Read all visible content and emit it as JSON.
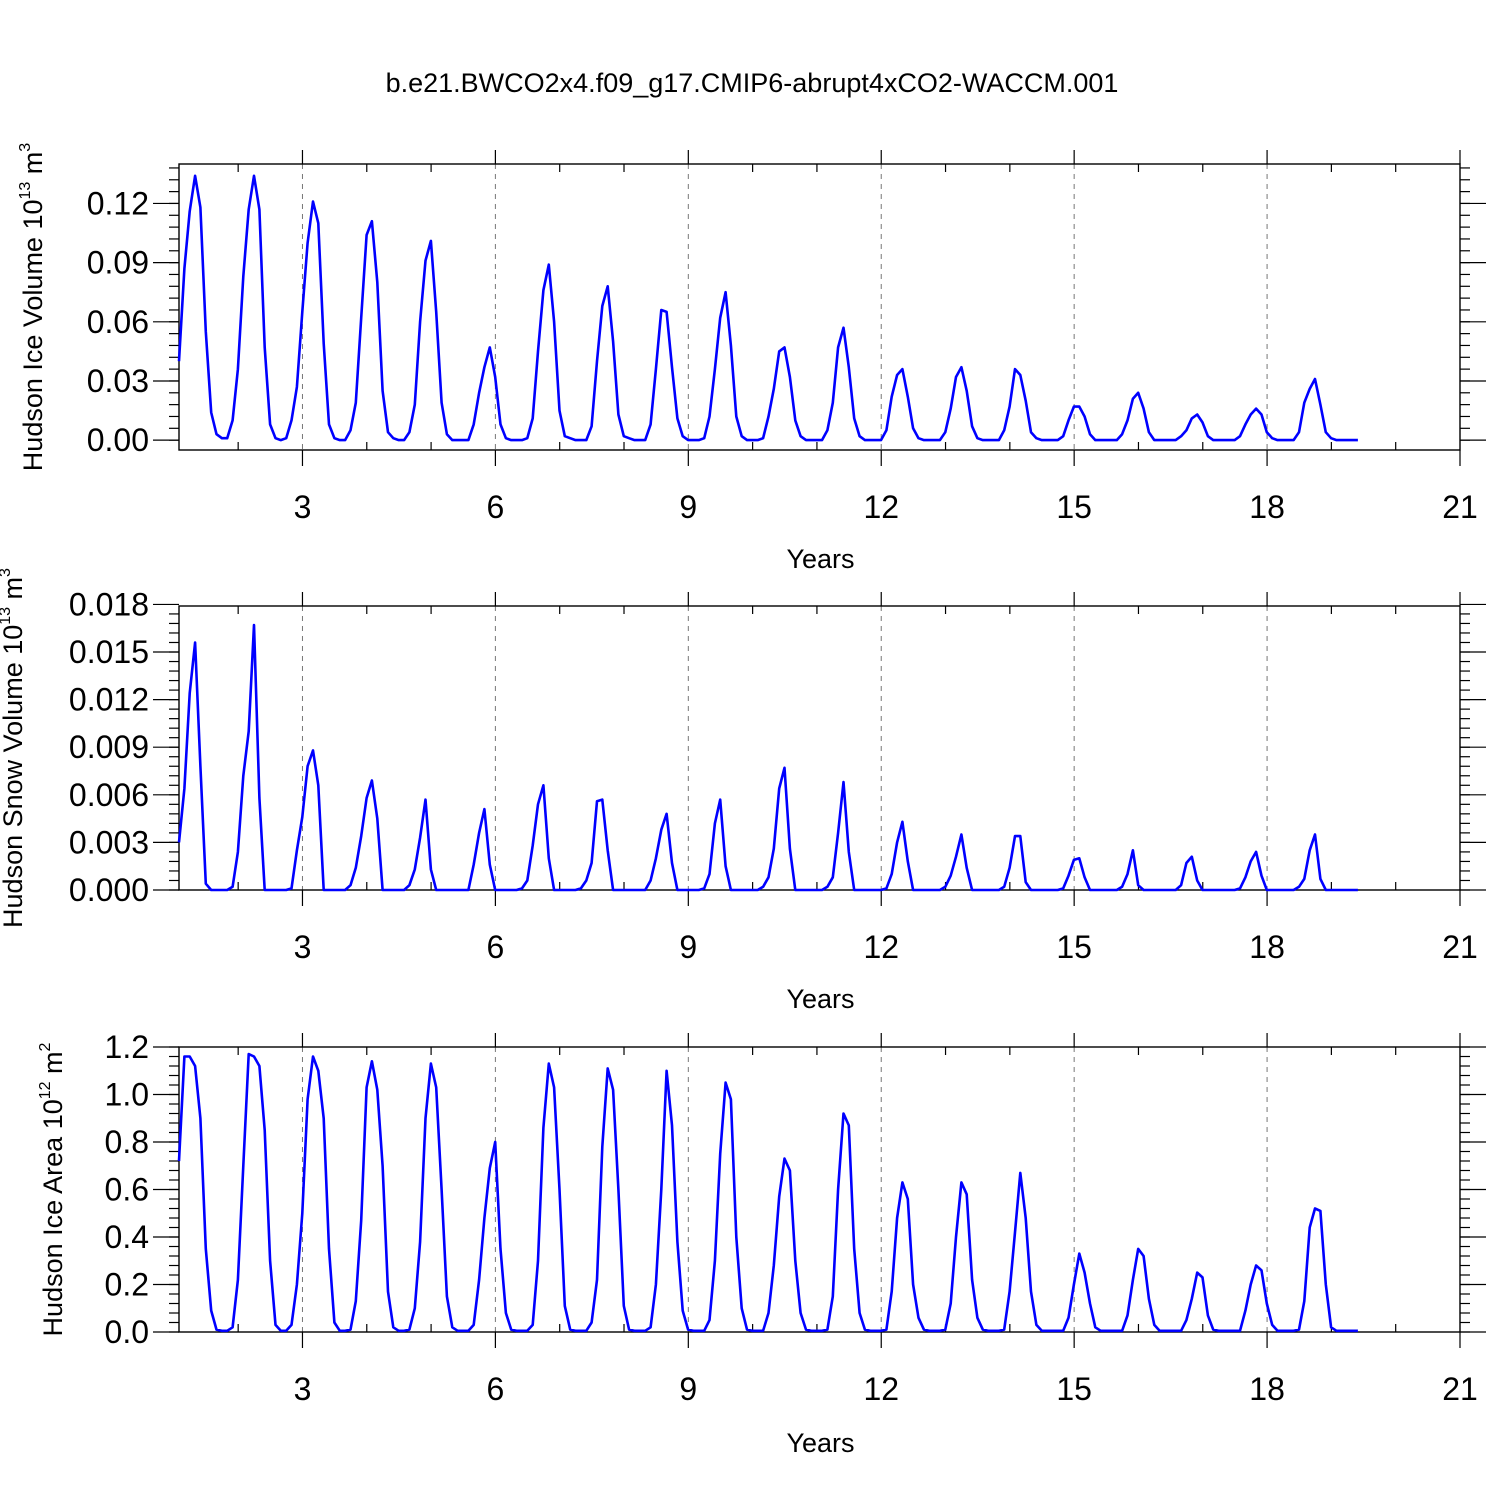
{
  "figure": {
    "title": "b.e21.BWCO2x4.f09_g17.CMIP6-abrupt4xCO2-WACCM.001",
    "series_color": "#0000ff"
  },
  "chart_data": [
    {
      "type": "line",
      "title": "b.e21.BWCO2x4.f09_g17.CMIP6-abrupt4xCO2-WACCM.001",
      "xlabel": "Years",
      "ylabel_main": "Hudson Ice Volume 10",
      "ylabel_exp": "13",
      "ylabel_unit": " m",
      "ylabel_unit_exp": "3",
      "xlim": [
        1.08,
        21.0
      ],
      "ylim": [
        -0.005,
        0.14
      ],
      "xticks": [
        3,
        6,
        9,
        12,
        15,
        18,
        21
      ],
      "xtick_labels": [
        "3",
        "6",
        "9",
        "12",
        "15",
        "18",
        "21"
      ],
      "yticks": [
        0.0,
        0.03,
        0.06,
        0.09,
        0.12
      ],
      "ytick_labels": [
        "0.00",
        "0.03",
        "0.06",
        "0.09",
        "0.12"
      ],
      "y_minor_step": 0.006,
      "x0": 1.08,
      "dx": 0.08333,
      "values": [
        0.04,
        0.087,
        0.116,
        0.134,
        0.118,
        0.055,
        0.014,
        0.003,
        0.001,
        0.001,
        0.01,
        0.036,
        0.083,
        0.117,
        0.134,
        0.117,
        0.047,
        0.008,
        0.001,
        0.0,
        0.001,
        0.01,
        0.027,
        0.065,
        0.1,
        0.121,
        0.11,
        0.049,
        0.008,
        0.001,
        0.0,
        0.0,
        0.005,
        0.019,
        0.062,
        0.104,
        0.111,
        0.08,
        0.025,
        0.004,
        0.001,
        0.0,
        0.0,
        0.004,
        0.018,
        0.06,
        0.091,
        0.101,
        0.065,
        0.019,
        0.003,
        0.0,
        0.0,
        0.0,
        0.0,
        0.008,
        0.024,
        0.037,
        0.047,
        0.032,
        0.008,
        0.001,
        0.0,
        0.0,
        0.0,
        0.001,
        0.011,
        0.045,
        0.076,
        0.089,
        0.06,
        0.015,
        0.002,
        0.001,
        0.0,
        0.0,
        0.0,
        0.007,
        0.04,
        0.068,
        0.078,
        0.05,
        0.013,
        0.002,
        0.001,
        0.0,
        0.0,
        0.0,
        0.008,
        0.036,
        0.066,
        0.065,
        0.037,
        0.011,
        0.002,
        0.0,
        0.0,
        0.0,
        0.001,
        0.012,
        0.036,
        0.062,
        0.075,
        0.048,
        0.012,
        0.002,
        0.0,
        0.0,
        0.0,
        0.001,
        0.012,
        0.026,
        0.045,
        0.047,
        0.032,
        0.01,
        0.002,
        0.0,
        0.0,
        0.0,
        0.0,
        0.005,
        0.019,
        0.047,
        0.057,
        0.037,
        0.011,
        0.002,
        0.0,
        0.0,
        0.0,
        0.0,
        0.005,
        0.022,
        0.033,
        0.036,
        0.022,
        0.006,
        0.001,
        0.0,
        0.0,
        0.0,
        0.0,
        0.004,
        0.016,
        0.032,
        0.037,
        0.025,
        0.007,
        0.001,
        0.0,
        0.0,
        0.0,
        0.0,
        0.005,
        0.017,
        0.036,
        0.033,
        0.02,
        0.004,
        0.001,
        0.0,
        0.0,
        0.0,
        0.0,
        0.002,
        0.01,
        0.017,
        0.017,
        0.012,
        0.003,
        0.0,
        0.0,
        0.0,
        0.0,
        0.0,
        0.003,
        0.01,
        0.021,
        0.024,
        0.016,
        0.004,
        0.0,
        0.0,
        0.0,
        0.0,
        0.0,
        0.002,
        0.005,
        0.011,
        0.013,
        0.009,
        0.002,
        0.0,
        0.0,
        0.0,
        0.0,
        0.0,
        0.002,
        0.008,
        0.013,
        0.016,
        0.013,
        0.004,
        0.001,
        0.0,
        0.0,
        0.0,
        0.0,
        0.004,
        0.019,
        0.026,
        0.031,
        0.018,
        0.004,
        0.001,
        0.0,
        0.0,
        0.0,
        0.0,
        0.0
      ]
    },
    {
      "type": "line",
      "xlabel": "Years",
      "ylabel_main": "Hudson Snow Volume 10",
      "ylabel_exp": "13",
      "ylabel_unit": " m",
      "ylabel_unit_exp": "3",
      "xlim": [
        1.08,
        21.0
      ],
      "ylim": [
        0.0,
        0.0179
      ],
      "xticks": [
        3,
        6,
        9,
        12,
        15,
        18,
        21
      ],
      "xtick_labels": [
        "3",
        "6",
        "9",
        "12",
        "15",
        "18",
        "21"
      ],
      "yticks": [
        0.0,
        0.003,
        0.006,
        0.009,
        0.012,
        0.015,
        0.018
      ],
      "ytick_labels": [
        "0.000",
        "0.003",
        "0.006",
        "0.009",
        "0.012",
        "0.015",
        "0.018"
      ],
      "y_minor_step": 0.0006,
      "x0": 1.08,
      "dx": 0.08333,
      "values": [
        0.003,
        0.0064,
        0.0124,
        0.0156,
        0.0078,
        0.0004,
        0.0,
        0.0,
        0.0,
        0.0,
        0.0002,
        0.0024,
        0.0072,
        0.01,
        0.0167,
        0.0058,
        0.0,
        0.0,
        0.0,
        0.0,
        0.0,
        0.0001,
        0.0025,
        0.0046,
        0.0078,
        0.0088,
        0.0066,
        0.0,
        0.0,
        0.0,
        0.0,
        0.0,
        0.0003,
        0.0014,
        0.0034,
        0.0058,
        0.0069,
        0.0045,
        0.0,
        0.0,
        0.0,
        0.0,
        0.0,
        0.0003,
        0.0013,
        0.0033,
        0.0057,
        0.0013,
        0.0,
        0.0,
        0.0,
        0.0,
        0.0,
        0.0,
        0.0,
        0.0016,
        0.0036,
        0.0051,
        0.0016,
        0.0,
        0.0,
        0.0,
        0.0,
        0.0,
        0.0001,
        0.0006,
        0.0028,
        0.0054,
        0.0066,
        0.002,
        0.0,
        0.0,
        0.0,
        0.0,
        0.0,
        0.0001,
        0.0006,
        0.0017,
        0.0056,
        0.0057,
        0.0025,
        0.0,
        0.0,
        0.0,
        0.0,
        0.0,
        0.0,
        0.0,
        0.0006,
        0.002,
        0.0038,
        0.0048,
        0.0017,
        0.0,
        0.0,
        0.0,
        0.0,
        0.0,
        0.0001,
        0.001,
        0.0042,
        0.0057,
        0.0015,
        0.0,
        0.0,
        0.0,
        0.0,
        0.0,
        0.0,
        0.0002,
        0.0008,
        0.0026,
        0.0064,
        0.0077,
        0.0026,
        0.0,
        0.0,
        0.0,
        0.0,
        0.0,
        0.0,
        0.0002,
        0.0008,
        0.0036,
        0.0068,
        0.0024,
        0.0,
        0.0,
        0.0,
        0.0,
        0.0,
        0.0,
        0.0001,
        0.001,
        0.003,
        0.0043,
        0.0018,
        0.0,
        0.0,
        0.0,
        0.0,
        0.0,
        0.0,
        0.0002,
        0.0009,
        0.0021,
        0.0035,
        0.0014,
        0.0,
        0.0,
        0.0,
        0.0,
        0.0,
        0.0,
        0.0002,
        0.0014,
        0.0034,
        0.0034,
        0.0005,
        0.0,
        0.0,
        0.0,
        0.0,
        0.0,
        0.0,
        0.0001,
        0.0009,
        0.0019,
        0.002,
        0.0008,
        0.0,
        0.0,
        0.0,
        0.0,
        0.0,
        0.0,
        0.0002,
        0.001,
        0.0025,
        0.0003,
        0.0,
        0.0,
        0.0,
        0.0,
        0.0,
        0.0,
        0.0,
        0.0003,
        0.0017,
        0.0021,
        0.0006,
        0.0,
        0.0,
        0.0,
        0.0,
        0.0,
        0.0,
        0.0,
        0.0001,
        0.0008,
        0.0018,
        0.0024,
        0.0009,
        0.0,
        0.0,
        0.0,
        0.0,
        0.0,
        0.0,
        0.0002,
        0.0007,
        0.0025,
        0.0035,
        0.0007,
        0.0,
        0.0,
        0.0,
        0.0,
        0.0,
        0.0,
        0.0
      ]
    },
    {
      "type": "line",
      "xlabel": "Years",
      "ylabel_main": "Hudson Ice Area 10",
      "ylabel_exp": "12",
      "ylabel_unit": " m",
      "ylabel_unit_exp": "2",
      "xlim": [
        1.08,
        21.0
      ],
      "ylim": [
        0.0,
        1.2
      ],
      "xticks": [
        3,
        6,
        9,
        12,
        15,
        18,
        21
      ],
      "xtick_labels": [
        "3",
        "6",
        "9",
        "12",
        "15",
        "18",
        "21"
      ],
      "yticks": [
        0.0,
        0.2,
        0.4,
        0.6,
        0.8,
        1.0,
        1.2
      ],
      "ytick_labels": [
        "0.0",
        "0.2",
        "0.4",
        "0.6",
        "0.8",
        "1.0",
        "1.2"
      ],
      "y_minor_step": 0.04,
      "x0": 1.08,
      "dx": 0.08333,
      "values": [
        0.72,
        1.16,
        1.16,
        1.12,
        0.9,
        0.35,
        0.09,
        0.01,
        0.005,
        0.005,
        0.02,
        0.22,
        0.7,
        1.17,
        1.16,
        1.12,
        0.85,
        0.3,
        0.03,
        0.005,
        0.005,
        0.03,
        0.2,
        0.5,
        0.98,
        1.16,
        1.1,
        0.9,
        0.35,
        0.04,
        0.005,
        0.005,
        0.01,
        0.13,
        0.47,
        1.03,
        1.14,
        1.02,
        0.7,
        0.17,
        0.02,
        0.005,
        0.005,
        0.01,
        0.1,
        0.38,
        0.9,
        1.13,
        1.03,
        0.6,
        0.15,
        0.02,
        0.005,
        0.005,
        0.005,
        0.03,
        0.22,
        0.48,
        0.69,
        0.8,
        0.35,
        0.08,
        0.01,
        0.005,
        0.005,
        0.005,
        0.03,
        0.3,
        0.86,
        1.13,
        1.03,
        0.6,
        0.11,
        0.01,
        0.005,
        0.005,
        0.005,
        0.04,
        0.22,
        0.78,
        1.11,
        1.02,
        0.6,
        0.11,
        0.01,
        0.005,
        0.005,
        0.005,
        0.02,
        0.2,
        0.6,
        1.1,
        0.87,
        0.38,
        0.09,
        0.01,
        0.005,
        0.005,
        0.005,
        0.05,
        0.3,
        0.75,
        1.05,
        0.98,
        0.4,
        0.1,
        0.01,
        0.005,
        0.005,
        0.005,
        0.08,
        0.28,
        0.57,
        0.73,
        0.68,
        0.3,
        0.08,
        0.01,
        0.005,
        0.005,
        0.005,
        0.01,
        0.15,
        0.6,
        0.92,
        0.87,
        0.35,
        0.08,
        0.01,
        0.005,
        0.005,
        0.005,
        0.01,
        0.17,
        0.48,
        0.63,
        0.56,
        0.2,
        0.06,
        0.01,
        0.005,
        0.005,
        0.005,
        0.01,
        0.12,
        0.4,
        0.63,
        0.58,
        0.22,
        0.06,
        0.01,
        0.005,
        0.005,
        0.005,
        0.01,
        0.17,
        0.42,
        0.67,
        0.48,
        0.17,
        0.03,
        0.005,
        0.005,
        0.005,
        0.005,
        0.005,
        0.06,
        0.2,
        0.33,
        0.25,
        0.12,
        0.02,
        0.005,
        0.005,
        0.005,
        0.005,
        0.005,
        0.07,
        0.22,
        0.35,
        0.32,
        0.14,
        0.03,
        0.005,
        0.005,
        0.005,
        0.005,
        0.005,
        0.05,
        0.14,
        0.25,
        0.23,
        0.07,
        0.01,
        0.005,
        0.005,
        0.005,
        0.005,
        0.005,
        0.09,
        0.2,
        0.28,
        0.26,
        0.12,
        0.03,
        0.005,
        0.005,
        0.005,
        0.005,
        0.01,
        0.13,
        0.44,
        0.52,
        0.51,
        0.2,
        0.02,
        0.005,
        0.005,
        0.005,
        0.005,
        0.005
      ]
    }
  ]
}
